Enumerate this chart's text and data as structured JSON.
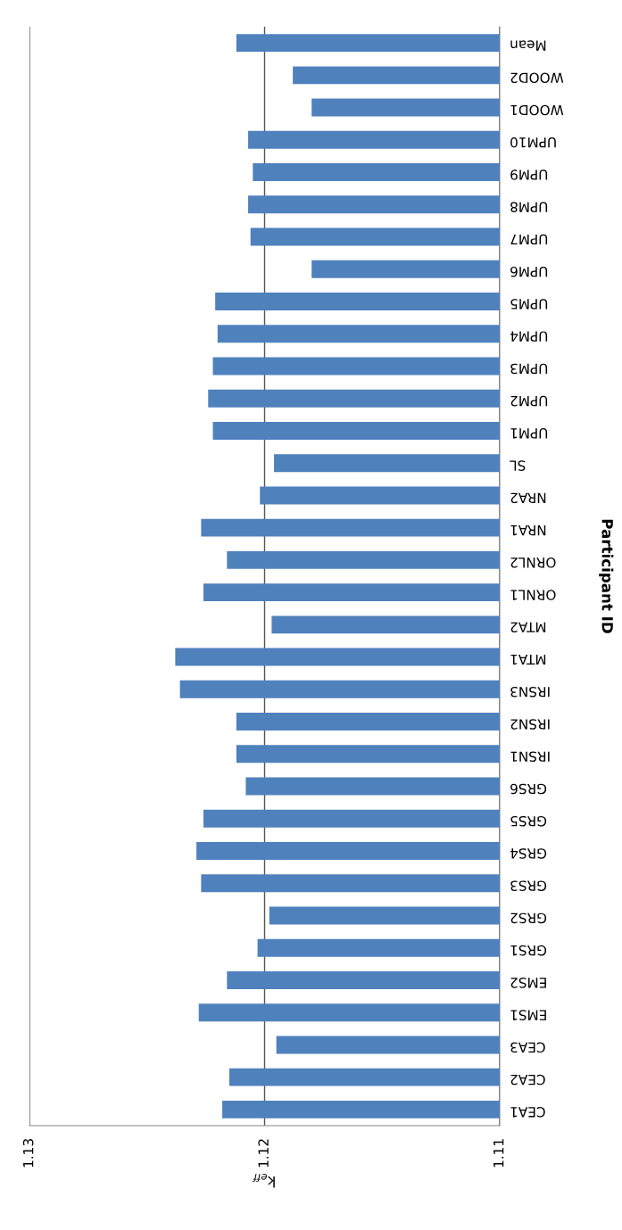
{
  "chart_data": {
    "type": "bar",
    "orientation": "horizontal",
    "xlabel": "k$_{eff}$",
    "ylabel": "Participant ID",
    "categories": [
      "Mean",
      "WOOD2",
      "WOOD1",
      "UPM10",
      "UPM9",
      "UPM8",
      "UPM7",
      "UPM6",
      "UPM5",
      "UPM4",
      "UPM3",
      "UPM2",
      "UPM1",
      "SL",
      "NRA2",
      "NRA1",
      "ORNL2",
      "ORNL1",
      "MTA2",
      "MTA1",
      "IRSN3",
      "IRSN2",
      "IRSN1",
      "GRS6",
      "GRS5",
      "GRS4",
      "GRS3",
      "GRS2",
      "GRS1",
      "EMS2",
      "EMS1",
      "CEA3",
      "CEA2",
      "CEA1"
    ],
    "values": [
      1.1212,
      1.1188,
      1.118,
      1.1207,
      1.1205,
      1.1207,
      1.1206,
      1.118,
      1.1221,
      1.122,
      1.1222,
      1.1224,
      1.1222,
      1.1196,
      1.1202,
      1.1227,
      1.1216,
      1.1226,
      1.1197,
      1.1238,
      1.1236,
      1.1212,
      1.1212,
      1.1208,
      1.1226,
      1.1229,
      1.1227,
      1.1198,
      1.1203,
      1.1216,
      1.1228,
      1.1195,
      1.1215,
      1.1218
    ],
    "color": "#4f81bd",
    "xlim": [
      1.13,
      1.11
    ],
    "xticks": [
      1.13,
      1.12,
      1.11
    ],
    "grid": "x"
  }
}
